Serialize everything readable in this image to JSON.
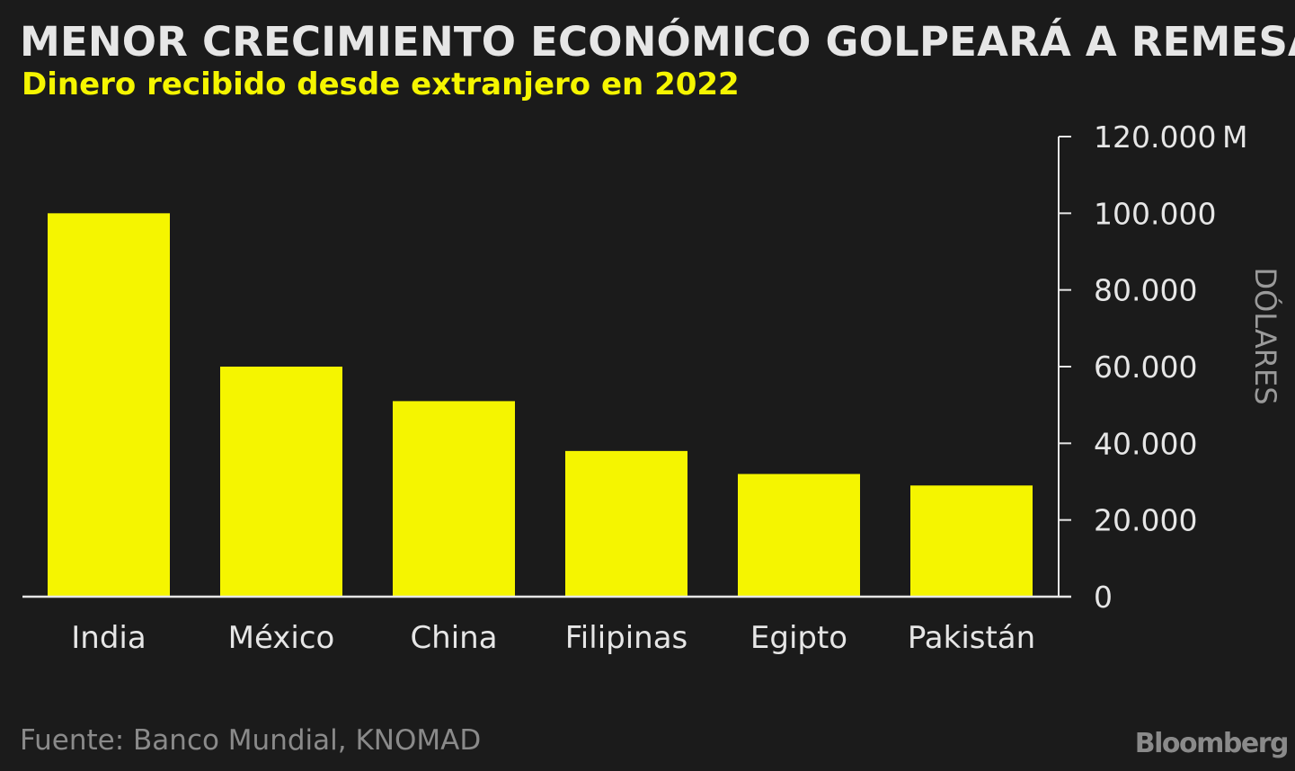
{
  "header": {
    "title": "MENOR CRECIMIENTO ECONÓMICO GOLPEARÁ A REMESAS",
    "subtitle": "Dinero recibido desde extranjero en 2022"
  },
  "footer": {
    "source": "Fuente: Banco Mundial, KNOMAD",
    "logo": "Bloomberg"
  },
  "colors": {
    "background": "#1b1b1b",
    "bar": "#f5f500",
    "text": "#e6e6e6",
    "muted": "#8a8a8a"
  },
  "chart_data": {
    "type": "bar",
    "categories": [
      "India",
      "México",
      "China",
      "Filipinas",
      "Egipto",
      "Pakistán"
    ],
    "values": [
      100000,
      60000,
      51000,
      38000,
      32000,
      29000
    ],
    "ylabel": "DÓLARES",
    "ylim": [
      0,
      120000
    ],
    "y_ticks": [
      "0",
      "20.000",
      "40.000",
      "60.000",
      "80.000",
      "100.000",
      "120.000"
    ],
    "y_unit": "M",
    "y_axis_position": "right",
    "grid": false
  }
}
